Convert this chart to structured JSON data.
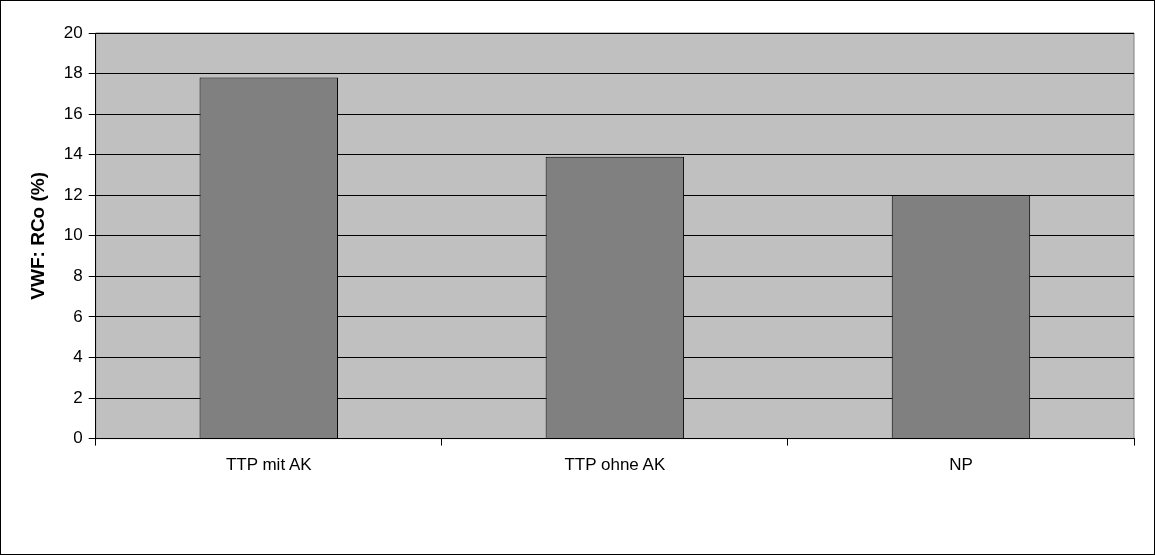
{
  "chart_data": {
    "type": "bar",
    "ylabel": "VWF: RCo (%)",
    "categories": [
      "TTP mit AK",
      "TTP ohne AK",
      "NP"
    ],
    "values": [
      17.8,
      13.9,
      12
    ],
    "color": "#808080",
    "ylim": [
      0,
      20
    ],
    "yticks": [
      0,
      2,
      4,
      6,
      8,
      10,
      12,
      14,
      16,
      18,
      20
    ],
    "grid": "y",
    "legend": false
  }
}
